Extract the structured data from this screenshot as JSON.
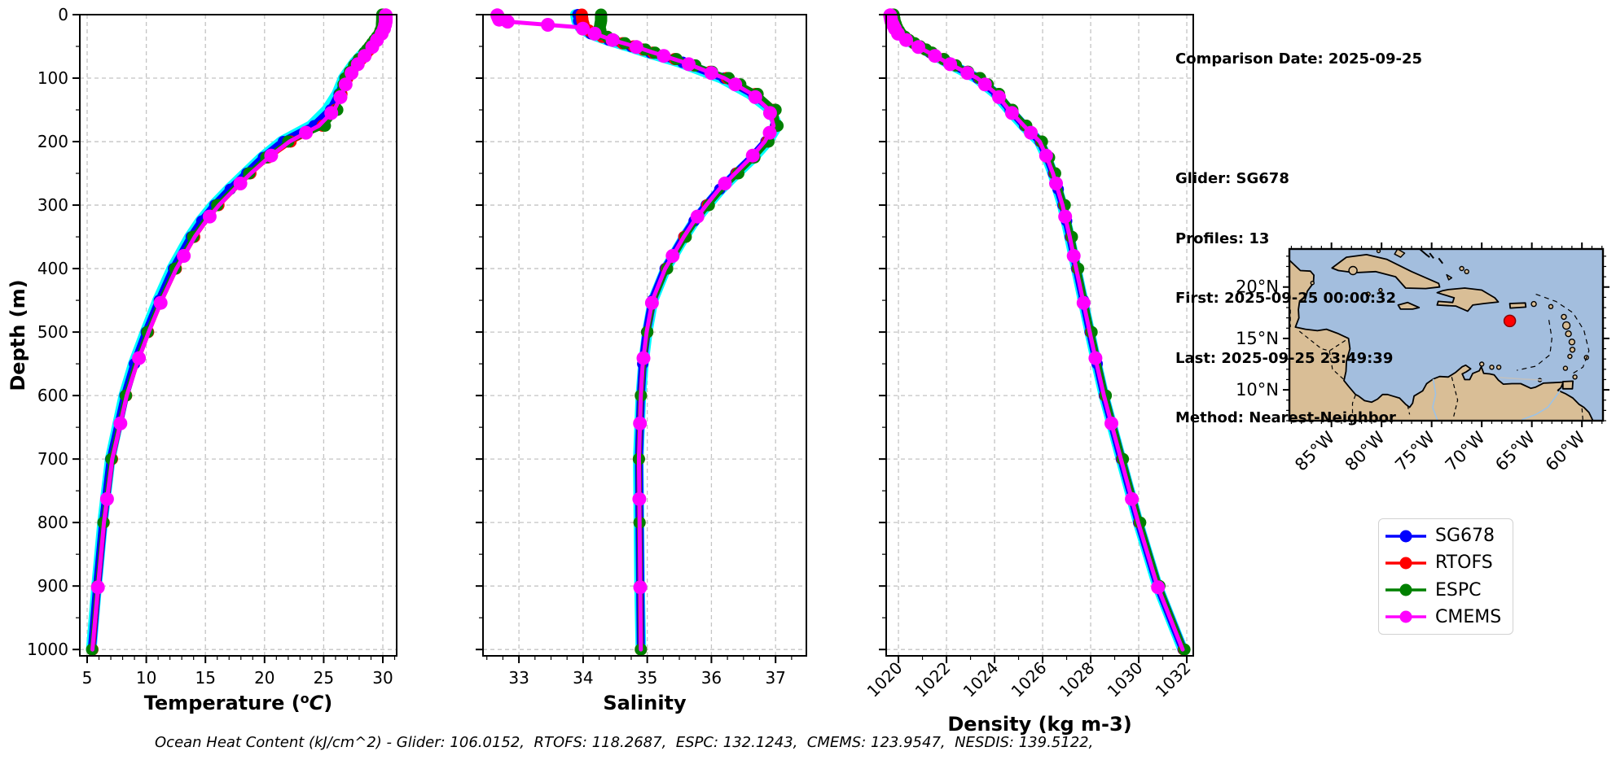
{
  "info_panel": {
    "lines": [
      "Comparison Date: 2025-09-25",
      "",
      "Glider: SG678",
      "Profiles: 13",
      "First: 2025-09-25 00:00:32",
      "Last: 2025-09-25 23:49:39",
      "Method: Nearest-Neighbor"
    ]
  },
  "footer": {
    "annotation": "Ocean Heat Content (kJ/cm^2) - Glider: 106.0152,  RTOFS: 118.2687,  ESPC: 132.1243,  CMEMS: 123.9547,  NESDIS: 139.5122,"
  },
  "legend": {
    "items": [
      {
        "label": "SG678",
        "color": "#0000FF"
      },
      {
        "label": "RTOFS",
        "color": "#FF0000"
      },
      {
        "label": "ESPC",
        "color": "#008000"
      },
      {
        "label": "CMEMS",
        "color": "#FF00FF"
      }
    ]
  },
  "map": {
    "sea_color": "#A3BEDE",
    "land_color": "#D9BE96",
    "extent": {
      "lon_min": -89.2,
      "lon_max": -57.9,
      "lat_min": 7.0,
      "lat_max": 23.7
    },
    "lon_ticks": [
      {
        "value": -85,
        "label": "85°W"
      },
      {
        "value": -80,
        "label": "80°W"
      },
      {
        "value": -75,
        "label": "75°W"
      },
      {
        "value": -70,
        "label": "70°W"
      },
      {
        "value": -65,
        "label": "65°W"
      },
      {
        "value": -60,
        "label": "60°W"
      }
    ],
    "lat_ticks": [
      {
        "value": 20,
        "label": "20°N"
      },
      {
        "value": 15,
        "label": "15°N"
      },
      {
        "value": 10,
        "label": "10°N"
      }
    ],
    "marker": {
      "lon": -67.2,
      "lat": 16.7,
      "color": "#FF0000"
    }
  },
  "chart_data": {
    "type": "line",
    "ylabel": "Depth (m)",
    "ylim": [
      0,
      1010
    ],
    "yticks": [
      0,
      100,
      200,
      300,
      400,
      500,
      600,
      700,
      800,
      900,
      1000
    ],
    "y_minor_step": 50,
    "depths": [
      0,
      10,
      20,
      30,
      40,
      50,
      60,
      75,
      100,
      125,
      150,
      175,
      200,
      225,
      250,
      275,
      300,
      325,
      350,
      400,
      450,
      500,
      550,
      600,
      700,
      800,
      900,
      1000
    ],
    "series_order": [
      "raw",
      "SG678",
      "RTOFS",
      "ESPC",
      "CMEMS"
    ],
    "series_styles": {
      "raw": {
        "color": "#00FFFF",
        "lw": 13,
        "r": 0,
        "markers": "none"
      },
      "SG678": {
        "color": "#0000FF",
        "lw": 10,
        "r": 7,
        "markers": "all"
      },
      "RTOFS": {
        "color": "#FF0000",
        "lw": 6.5,
        "r": 7.5,
        "markers": "model_levels"
      },
      "ESPC": {
        "color": "#008000",
        "lw": 6,
        "r": 7.5,
        "markers": "model_levels"
      },
      "CMEMS": {
        "color": "#FF00FF",
        "lw": 5,
        "r": 8.5,
        "markers": "cmems_levels"
      }
    },
    "marker_levels": {
      "model_levels": [
        0,
        2,
        4,
        6,
        8,
        10,
        12,
        15,
        20,
        25,
        30,
        35,
        40,
        45,
        50,
        55,
        60,
        70,
        80,
        90,
        100,
        110,
        125,
        150,
        175,
        200,
        225,
        250,
        300,
        350,
        400,
        500,
        600,
        700,
        800,
        900,
        1000
      ],
      "cmems_levels": [
        1,
        3,
        5,
        8,
        11,
        16,
        22,
        30,
        40,
        51,
        65,
        78,
        92,
        110,
        130,
        155,
        186,
        222,
        266,
        318,
        380,
        454,
        541,
        644,
        763,
        902
      ]
    },
    "subplots": [
      {
        "name": "temperature",
        "xlabel_parts": [
          {
            "t": "Temperature ("
          },
          {
            "t": "o",
            "sup": true
          },
          {
            "t": "C",
            "italic": true
          },
          {
            "t": ")"
          }
        ],
        "xlim": [
          4.38,
          31.17
        ],
        "xticks": [
          {
            "value": 5,
            "label": "5"
          },
          {
            "value": 10,
            "label": "10"
          },
          {
            "value": 15,
            "label": "15"
          },
          {
            "value": 20,
            "label": "20"
          },
          {
            "value": 25,
            "label": "25"
          },
          {
            "value": 30,
            "label": "30"
          }
        ],
        "x_minor_step": 1,
        "rotate_xticklabels": false,
        "show_yticklabels": true,
        "series": {
          "raw": [
            30.2,
            30.2,
            30.1,
            29.85,
            29.35,
            28.9,
            28.35,
            27.6,
            26.65,
            26.1,
            25.25,
            23.9,
            21.4,
            19.75,
            18.35,
            16.95,
            15.65,
            14.55,
            13.65,
            12.15,
            10.95,
            9.9,
            8.9,
            8.1,
            6.95,
            6.3,
            5.8,
            5.35
          ],
          "SG678": [
            30.15,
            30.15,
            30.05,
            29.8,
            29.4,
            29.0,
            28.5,
            27.8,
            26.8,
            26.3,
            25.6,
            24.2,
            21.6,
            19.9,
            18.5,
            17.1,
            15.8,
            14.7,
            13.8,
            12.3,
            11.1,
            10.0,
            9.0,
            8.2,
            7.0,
            6.35,
            5.85,
            5.4
          ],
          "RTOFS": [
            30.05,
            30.05,
            29.95,
            29.75,
            29.45,
            29.1,
            28.65,
            27.95,
            27.0,
            26.5,
            26.0,
            24.9,
            22.2,
            20.3,
            18.8,
            17.4,
            16.1,
            15.0,
            14.05,
            12.5,
            11.25,
            10.15,
            9.15,
            8.3,
            7.1,
            6.4,
            5.9,
            5.45
          ],
          "ESPC": [
            29.95,
            29.95,
            29.9,
            29.7,
            29.3,
            28.9,
            28.45,
            27.75,
            26.85,
            26.4,
            26.15,
            25.1,
            22.0,
            20.15,
            18.7,
            17.3,
            16.0,
            14.9,
            13.95,
            12.45,
            11.2,
            10.1,
            9.1,
            8.28,
            7.05,
            6.38,
            5.88,
            5.42
          ],
          "CMEMS": [
            30.25,
            30.25,
            30.15,
            29.9,
            29.5,
            29.15,
            28.7,
            28.0,
            27.05,
            26.55,
            25.9,
            24.6,
            22.1,
            20.35,
            18.85,
            17.45,
            16.15,
            15.05,
            14.1,
            12.55,
            11.3,
            10.2,
            9.2,
            8.35,
            7.12,
            6.42,
            5.92,
            5.45
          ]
        }
      },
      {
        "name": "salinity",
        "xlabel_parts": [
          {
            "t": "Salinity"
          }
        ],
        "xlim": [
          32.44,
          37.48
        ],
        "xticks": [
          {
            "value": 33,
            "label": "33"
          },
          {
            "value": 34,
            "label": "34"
          },
          {
            "value": 35,
            "label": "35"
          },
          {
            "value": 36,
            "label": "36"
          },
          {
            "value": 37,
            "label": "37"
          }
        ],
        "x_minor_step": 0.25,
        "rotate_xticklabels": false,
        "show_yticklabels": false,
        "series": {
          "raw": [
            33.88,
            33.9,
            33.95,
            34.1,
            34.37,
            34.7,
            35.0,
            35.5,
            36.15,
            36.6,
            36.92,
            37.03,
            36.88,
            36.66,
            36.4,
            36.15,
            35.94,
            35.74,
            35.58,
            35.29,
            35.09,
            35.0,
            34.94,
            34.9,
            34.86,
            34.87,
            34.88,
            34.9
          ],
          "SG678": [
            33.92,
            33.93,
            33.97,
            34.12,
            34.4,
            34.75,
            35.05,
            35.55,
            36.2,
            36.65,
            36.95,
            37.0,
            36.85,
            36.63,
            36.38,
            36.13,
            35.92,
            35.73,
            35.57,
            35.28,
            35.08,
            34.99,
            34.93,
            34.9,
            34.87,
            34.88,
            34.89,
            34.9
          ],
          "RTOFS": [
            33.98,
            33.99,
            34.02,
            34.16,
            34.44,
            34.79,
            35.09,
            35.6,
            36.24,
            36.69,
            36.98,
            37.02,
            36.87,
            36.65,
            36.4,
            36.15,
            35.94,
            35.75,
            35.58,
            35.3,
            35.1,
            35.0,
            34.94,
            34.9,
            34.87,
            34.88,
            34.89,
            34.9
          ],
          "ESPC": [
            34.28,
            34.28,
            34.26,
            34.28,
            34.48,
            34.82,
            35.12,
            35.62,
            36.27,
            36.72,
            37.0,
            37.03,
            36.89,
            36.67,
            36.42,
            36.17,
            35.96,
            35.76,
            35.6,
            35.31,
            35.1,
            35.0,
            34.94,
            34.9,
            34.87,
            34.88,
            34.89,
            34.9
          ],
          "CMEMS": [
            32.66,
            32.7,
            33.95,
            34.18,
            34.46,
            34.8,
            35.1,
            35.57,
            36.2,
            36.63,
            36.9,
            36.97,
            36.83,
            36.62,
            36.37,
            36.12,
            35.92,
            35.73,
            35.57,
            35.28,
            35.08,
            34.99,
            34.93,
            34.9,
            34.87,
            34.88,
            34.89,
            34.9
          ]
        }
      },
      {
        "name": "density",
        "xlabel_parts": [
          {
            "t": "Density (kg m-3)"
          }
        ],
        "xlim": [
          1019.49,
          1032.27
        ],
        "xticks": [
          {
            "value": 1020,
            "label": "1020"
          },
          {
            "value": 1022,
            "label": "1022"
          },
          {
            "value": 1024,
            "label": "1024"
          },
          {
            "value": 1026,
            "label": "1026"
          },
          {
            "value": 1028,
            "label": "1028"
          },
          {
            "value": 1030,
            "label": "1030"
          },
          {
            "value": 1032,
            "label": "1032"
          }
        ],
        "x_minor_step": 1,
        "rotate_xticklabels": true,
        "show_yticklabels": false,
        "series": {
          "raw": [
            1019.7,
            1019.74,
            1019.84,
            1020.0,
            1020.34,
            1020.8,
            1021.3,
            1022.0,
            1023.25,
            1024.05,
            1024.6,
            1025.2,
            1025.86,
            1026.17,
            1026.42,
            1026.62,
            1026.82,
            1026.97,
            1027.12,
            1027.4,
            1027.68,
            1027.96,
            1028.25,
            1028.55,
            1029.26,
            1029.98,
            1030.78,
            1031.83
          ],
          "SG678": [
            1019.72,
            1019.76,
            1019.86,
            1020.02,
            1020.36,
            1020.82,
            1021.32,
            1022.05,
            1023.3,
            1024.1,
            1024.65,
            1025.25,
            1025.9,
            1026.2,
            1026.45,
            1026.65,
            1026.85,
            1027.0,
            1027.15,
            1027.42,
            1027.7,
            1027.98,
            1028.27,
            1028.57,
            1029.28,
            1030.0,
            1030.8,
            1031.85
          ],
          "RTOFS": [
            1019.78,
            1019.82,
            1019.92,
            1020.08,
            1020.42,
            1020.88,
            1021.38,
            1022.12,
            1023.38,
            1024.17,
            1024.72,
            1025.3,
            1025.95,
            1026.25,
            1026.5,
            1026.7,
            1026.9,
            1027.05,
            1027.2,
            1027.46,
            1027.74,
            1028.02,
            1028.31,
            1028.61,
            1029.32,
            1030.04,
            1030.84,
            1031.88
          ],
          "ESPC": [
            1019.8,
            1019.84,
            1019.94,
            1020.1,
            1020.44,
            1020.9,
            1021.4,
            1022.14,
            1023.4,
            1024.19,
            1024.74,
            1025.32,
            1025.97,
            1026.27,
            1026.52,
            1026.72,
            1026.92,
            1027.07,
            1027.22,
            1027.48,
            1027.76,
            1028.04,
            1028.33,
            1028.63,
            1029.34,
            1030.06,
            1030.86,
            1031.9
          ],
          "CMEMS": [
            1019.65,
            1019.7,
            1019.82,
            1019.98,
            1020.32,
            1020.78,
            1021.28,
            1022.0,
            1023.28,
            1024.08,
            1024.6,
            1025.22,
            1025.88,
            1026.18,
            1026.43,
            1026.63,
            1026.83,
            1026.98,
            1027.13,
            1027.4,
            1027.68,
            1027.96,
            1028.25,
            1028.55,
            1029.26,
            1029.98,
            1030.78,
            1031.83
          ]
        }
      }
    ]
  }
}
